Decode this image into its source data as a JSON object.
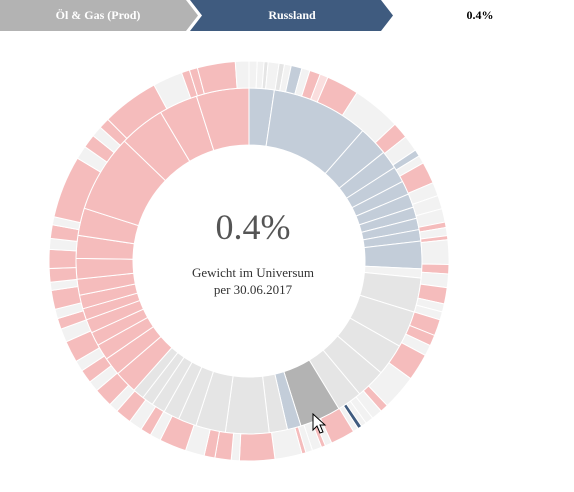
{
  "breadcrumb": {
    "level1": "Öl & Gas (Prod)",
    "level2": "Russland",
    "value": "0.4%",
    "level1_color": "#b3b3b3",
    "level2_color": "#3f5b7f"
  },
  "center": {
    "value": "0.4%",
    "label_line1": "Gewicht im Universum",
    "label_line2": "per 30.06.2017"
  },
  "colors": {
    "pink": "#f5bcbc",
    "pink_light": "#fadede",
    "blue_gray": "#c3cdd9",
    "blue_dark": "#3f5b7f",
    "gray_light": "#e5e5e5",
    "gray_lighter": "#f2f2f2",
    "gray_mid": "#b3b3b3",
    "separator": "#ffffff"
  },
  "chart_data": {
    "type": "sunburst",
    "inner_ring": [
      {
        "color": "blue_gray",
        "value": 2.2
      },
      {
        "color": "blue_gray",
        "value": 8.5
      },
      {
        "color": "blue_gray",
        "value": 2.6
      },
      {
        "color": "blue_gray",
        "value": 1.6
      },
      {
        "color": "blue_gray",
        "value": 1.4
      },
      {
        "color": "blue_gray",
        "value": 1.2
      },
      {
        "color": "blue_gray",
        "value": 1.2
      },
      {
        "color": "blue_gray",
        "value": 1.0
      },
      {
        "color": "blue_gray",
        "value": 1.0
      },
      {
        "color": "blue_gray",
        "value": 1.0
      },
      {
        "color": "blue_gray",
        "value": 2.4
      },
      {
        "color": "gray_lighter",
        "value": 0.8
      },
      {
        "color": "gray_light",
        "value": 3.0
      },
      {
        "color": "gray_light",
        "value": 3.2
      },
      {
        "color": "gray_light",
        "value": 2.8
      },
      {
        "color": "gray_light",
        "value": 2.6
      },
      {
        "color": "gray_light",
        "value": 2.2
      },
      {
        "color": "gray_mid",
        "value": 3.6
      },
      {
        "color": "blue_gray",
        "value": 1.2
      },
      {
        "color": "gray_light",
        "value": 1.6
      },
      {
        "color": "gray_light",
        "value": 3.8
      },
      {
        "color": "gray_light",
        "value": 2.6
      },
      {
        "color": "gray_light",
        "value": 1.6
      },
      {
        "color": "gray_light",
        "value": 1.4
      },
      {
        "color": "gray_light",
        "value": 1.2
      },
      {
        "color": "gray_light",
        "value": 1.0
      },
      {
        "color": "gray_light",
        "value": 1.0
      },
      {
        "color": "pink",
        "value": 2.0
      },
      {
        "color": "pink",
        "value": 1.6
      },
      {
        "color": "pink",
        "value": 1.4
      },
      {
        "color": "pink",
        "value": 1.2
      },
      {
        "color": "pink",
        "value": 1.2
      },
      {
        "color": "pink",
        "value": 1.0
      },
      {
        "color": "pink",
        "value": 1.2
      },
      {
        "color": "pink",
        "value": 1.4
      },
      {
        "color": "pink",
        "value": 1.8
      },
      {
        "color": "pink",
        "value": 2.0
      },
      {
        "color": "pink",
        "value": 2.4
      },
      {
        "color": "pink",
        "value": 6.8
      },
      {
        "color": "pink",
        "value": 4.0
      },
      {
        "color": "pink",
        "value": 3.4
      },
      {
        "color": "pink",
        "value": 4.6
      }
    ],
    "outer_ring": [
      {
        "color": "gray_lighter",
        "value": 0.6
      },
      {
        "color": "gray_lighter",
        "value": 0.5
      },
      {
        "color": "gray_light",
        "value": 0.3
      },
      {
        "color": "gray_lighter",
        "value": 0.8
      },
      {
        "color": "gray_light",
        "value": 0.4
      },
      {
        "color": "gray_lighter",
        "value": 0.5
      },
      {
        "color": "blue_gray",
        "value": 0.8
      },
      {
        "color": "gray_lighter",
        "value": 0.6
      },
      {
        "color": "pink",
        "value": 0.8
      },
      {
        "color": "pink_light",
        "value": 0.6
      },
      {
        "color": "pink",
        "value": 2.4
      },
      {
        "color": "gray_lighter",
        "value": 3.6
      },
      {
        "color": "pink",
        "value": 1.2
      },
      {
        "color": "gray_lighter",
        "value": 1.2
      },
      {
        "color": "blue_gray",
        "value": 0.5
      },
      {
        "color": "gray_lighter",
        "value": 0.6
      },
      {
        "color": "pink",
        "value": 1.6
      },
      {
        "color": "gray_lighter",
        "value": 1.0
      },
      {
        "color": "gray_lighter",
        "value": 1.0
      },
      {
        "color": "gray_lighter",
        "value": 1.0
      },
      {
        "color": "pink",
        "value": 0.4
      },
      {
        "color": "gray_lighter",
        "value": 0.6
      },
      {
        "color": "pink",
        "value": 0.3
      },
      {
        "color": "gray_lighter",
        "value": 1.8
      },
      {
        "color": "pink",
        "value": 0.7
      },
      {
        "color": "gray_lighter",
        "value": 1.0
      },
      {
        "color": "pink",
        "value": 1.2
      },
      {
        "color": "gray_lighter",
        "value": 0.6
      },
      {
        "color": "gray_lighter",
        "value": 0.6
      },
      {
        "color": "pink",
        "value": 1.2
      },
      {
        "color": "pink",
        "value": 0.8
      },
      {
        "color": "gray_lighter",
        "value": 0.8
      },
      {
        "color": "pink",
        "value": 2.0
      },
      {
        "color": "gray_lighter",
        "value": 2.6
      },
      {
        "color": "pink",
        "value": 0.6
      },
      {
        "color": "gray_lighter",
        "value": 0.8
      },
      {
        "color": "gray_lighter",
        "value": 0.6
      },
      {
        "color": "gray_lighter",
        "value": 0.4
      },
      {
        "color": "blue_dark",
        "value": 0.3
      },
      {
        "color": "gray_lighter",
        "value": 0.4
      },
      {
        "color": "pink",
        "value": 1.8
      },
      {
        "color": "gray_lighter",
        "value": 0.5
      },
      {
        "color": "pink",
        "value": 0.3
      },
      {
        "color": "gray_lighter",
        "value": 0.7
      },
      {
        "color": "gray_lighter",
        "value": 0.5
      },
      {
        "color": "pink",
        "value": 0.3
      },
      {
        "color": "gray_lighter",
        "value": 2.0
      },
      {
        "color": "pink",
        "value": 2.6
      },
      {
        "color": "gray_lighter",
        "value": 0.6
      },
      {
        "color": "pink",
        "value": 1.2
      },
      {
        "color": "pink",
        "value": 0.8
      },
      {
        "color": "gray_lighter",
        "value": 1.4
      },
      {
        "color": "pink",
        "value": 2.0
      },
      {
        "color": "gray_lighter",
        "value": 0.8
      },
      {
        "color": "pink",
        "value": 0.8
      },
      {
        "color": "gray_lighter",
        "value": 1.0
      },
      {
        "color": "pink",
        "value": 1.2
      },
      {
        "color": "gray_lighter",
        "value": 0.7
      },
      {
        "color": "pink",
        "value": 1.4
      },
      {
        "color": "gray_lighter",
        "value": 0.8
      },
      {
        "color": "pink",
        "value": 1.0
      },
      {
        "color": "gray_lighter",
        "value": 0.8
      },
      {
        "color": "pink",
        "value": 1.6
      },
      {
        "color": "gray_lighter",
        "value": 1.0
      },
      {
        "color": "pink",
        "value": 0.8
      },
      {
        "color": "gray_lighter",
        "value": 0.7
      },
      {
        "color": "pink",
        "value": 1.4
      },
      {
        "color": "gray_lighter",
        "value": 0.6
      },
      {
        "color": "pink",
        "value": 1.0
      },
      {
        "color": "pink",
        "value": 1.4
      },
      {
        "color": "gray_lighter",
        "value": 0.8
      },
      {
        "color": "pink",
        "value": 1.0
      },
      {
        "color": "gray_lighter",
        "value": 0.6
      },
      {
        "color": "pink",
        "value": 4.6
      },
      {
        "color": "gray_lighter",
        "value": 1.0
      },
      {
        "color": "pink",
        "value": 1.0
      },
      {
        "color": "gray_lighter",
        "value": 0.8
      },
      {
        "color": "pink",
        "value": 0.8
      },
      {
        "color": "pink",
        "value": 4.2
      },
      {
        "color": "gray_lighter",
        "value": 2.2
      },
      {
        "color": "pink",
        "value": 0.6
      },
      {
        "color": "pink",
        "value": 0.6
      },
      {
        "color": "pink",
        "value": 2.8
      },
      {
        "color": "gray_lighter",
        "value": 1.0
      }
    ]
  }
}
